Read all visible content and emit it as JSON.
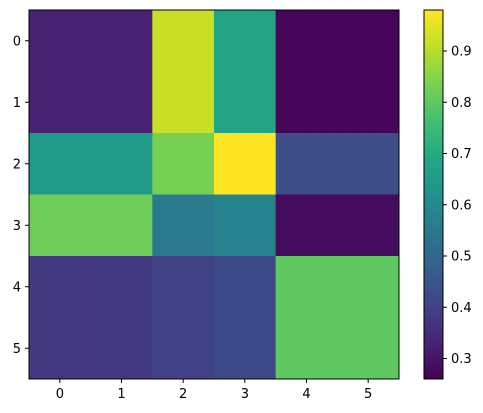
{
  "chart_data": {
    "type": "heatmap",
    "title": "",
    "xlabel": "",
    "ylabel": "",
    "colormap": "viridis",
    "xticks": [
      "0",
      "1",
      "2",
      "3",
      "4",
      "5"
    ],
    "yticks": [
      "0",
      "1",
      "2",
      "3",
      "4",
      "5"
    ],
    "values": [
      [
        0.33,
        0.33,
        0.92,
        0.68,
        0.27,
        0.27
      ],
      [
        0.33,
        0.33,
        0.92,
        0.68,
        0.27,
        0.27
      ],
      [
        0.65,
        0.65,
        0.83,
        0.98,
        0.43,
        0.43
      ],
      [
        0.82,
        0.82,
        0.55,
        0.58,
        0.28,
        0.28
      ],
      [
        0.38,
        0.38,
        0.4,
        0.42,
        0.8,
        0.8
      ],
      [
        0.38,
        0.38,
        0.4,
        0.42,
        0.8,
        0.8
      ]
    ],
    "colorbar": {
      "range": [
        0.26,
        0.98
      ],
      "ticks": [
        "0.3",
        "0.4",
        "0.5",
        "0.6",
        "0.7",
        "0.8",
        "0.9"
      ]
    }
  }
}
